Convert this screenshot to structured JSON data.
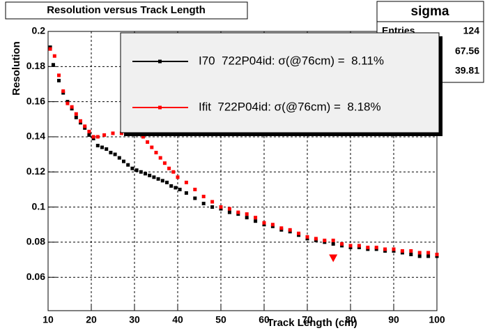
{
  "chart_data": {
    "type": "scatter",
    "title": "Resolution versus Track Length",
    "x_label": "Track Length (cm)",
    "y_label": "Resolution",
    "xlim": [
      10,
      100
    ],
    "ylim": [
      0.041,
      0.2
    ],
    "xticks": [
      10,
      20,
      30,
      40,
      50,
      60,
      70,
      80,
      90,
      100
    ],
    "yticks": [
      0.06,
      0.08,
      0.1,
      0.12,
      0.14,
      0.16,
      0.18,
      0.2
    ],
    "grid": true,
    "series": [
      {
        "name": "I70  722P04id: σ(@76cm) =  8.11%",
        "color": "#000000",
        "x": [
          10.5,
          11.2,
          12.5,
          13.5,
          14.5,
          15.5,
          16.5,
          17.5,
          18.5,
          19.5,
          20.5,
          21.5,
          22.5,
          23.5,
          24.5,
          25.5,
          26.5,
          27.5,
          28.5,
          29.5,
          30.5,
          31.5,
          32.5,
          33.5,
          34.5,
          35.5,
          36.5,
          37.5,
          38.5,
          39.5,
          40.5,
          42,
          44,
          46,
          48,
          50,
          52,
          54,
          56,
          58,
          60,
          62,
          64,
          66,
          68,
          70,
          72,
          74,
          76,
          78,
          80,
          82,
          84,
          86,
          88,
          90,
          92,
          94,
          96,
          98,
          100
        ],
        "values": [
          0.191,
          0.181,
          0.172,
          0.165,
          0.16,
          0.156,
          0.151,
          0.148,
          0.145,
          0.141,
          0.139,
          0.135,
          0.134,
          0.133,
          0.131,
          0.13,
          0.128,
          0.126,
          0.124,
          0.122,
          0.121,
          0.12,
          0.119,
          0.118,
          0.117,
          0.116,
          0.115,
          0.114,
          0.112,
          0.111,
          0.11,
          0.108,
          0.105,
          0.102,
          0.1,
          0.099,
          0.097,
          0.096,
          0.094,
          0.092,
          0.09,
          0.089,
          0.087,
          0.086,
          0.084,
          0.082,
          0.081,
          0.08,
          0.079,
          0.078,
          0.077,
          0.077,
          0.076,
          0.076,
          0.075,
          0.075,
          0.074,
          0.073,
          0.072,
          0.072,
          0.072
        ]
      },
      {
        "name": "Ifit  722P04id: σ(@76cm) =  8.18%",
        "color": "#ff0000",
        "x": [
          10.5,
          11.5,
          12.5,
          13.5,
          14.5,
          15.5,
          16.5,
          17.5,
          18.5,
          19.5,
          20.5,
          21.5,
          23,
          25,
          27,
          28,
          29,
          30,
          31,
          32,
          33,
          34,
          35,
          36,
          37,
          38,
          39,
          40,
          42,
          44,
          46,
          48,
          50,
          52,
          54,
          56,
          58,
          60,
          62,
          64,
          66,
          68,
          70,
          72,
          74,
          76,
          78,
          80,
          82,
          84,
          86,
          88,
          90,
          92,
          94,
          96,
          98,
          100
        ],
        "values": [
          0.19,
          0.186,
          0.175,
          0.166,
          0.159,
          0.157,
          0.153,
          0.149,
          0.146,
          0.143,
          0.14,
          0.14,
          0.141,
          0.142,
          0.142,
          0.143,
          0.143,
          0.143,
          0.143,
          0.14,
          0.137,
          0.134,
          0.131,
          0.128,
          0.125,
          0.122,
          0.12,
          0.117,
          0.114,
          0.11,
          0.106,
          0.103,
          0.1,
          0.099,
          0.097,
          0.096,
          0.094,
          0.091,
          0.09,
          0.088,
          0.087,
          0.085,
          0.083,
          0.082,
          0.081,
          0.081,
          0.079,
          0.078,
          0.078,
          0.077,
          0.077,
          0.076,
          0.076,
          0.075,
          0.075,
          0.074,
          0.074,
          0.073
        ]
      }
    ],
    "marker": {
      "x": 76,
      "y": 0.071,
      "color": "#ff0000"
    },
    "stats": {
      "title": "sigma",
      "rows": [
        {
          "label": "Entries",
          "value": 124
        },
        {
          "value": 67.56
        },
        {
          "value": 39.81
        }
      ]
    }
  }
}
